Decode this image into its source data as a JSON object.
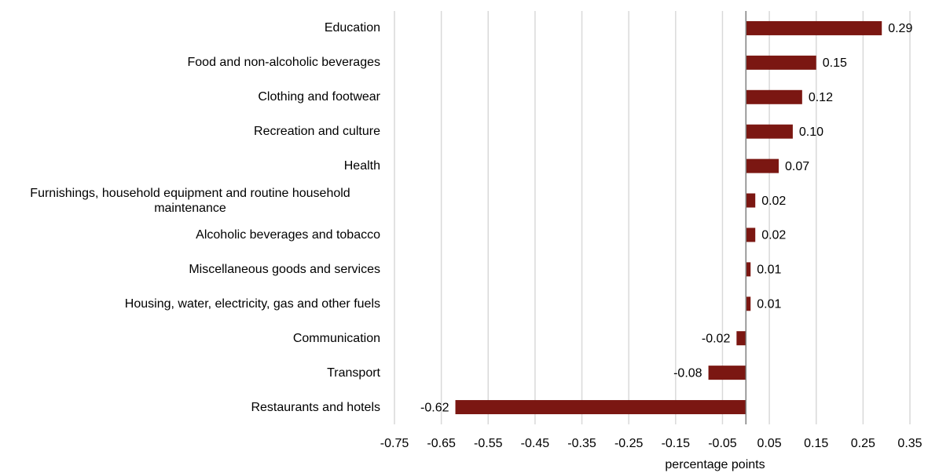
{
  "chart_data": {
    "type": "bar",
    "orientation": "horizontal",
    "categories": [
      "Education",
      "Food and non-alcoholic beverages",
      "Clothing and footwear",
      "Recreation and culture",
      "Health",
      "Furnishings, household equipment and routine household maintenance",
      "Alcoholic beverages and tobacco",
      "Miscellaneous goods and services",
      "Housing, water, electricity, gas and other fuels",
      "Communication",
      "Transport",
      "Restaurants and hotels"
    ],
    "values": [
      0.29,
      0.15,
      0.12,
      0.1,
      0.07,
      0.02,
      0.02,
      0.01,
      0.01,
      -0.02,
      -0.08,
      -0.62
    ],
    "value_labels": [
      "0.29",
      "0.15",
      "0.12",
      "0.10",
      "0.07",
      "0.02",
      "0.02",
      "0.01",
      "0.01",
      "-0.02",
      "-0.08",
      "-0.62"
    ],
    "color": "#7b1712",
    "xlabel": "percentage points",
    "xlim": [
      -0.75,
      0.35
    ],
    "xticks": [
      -0.75,
      -0.65,
      -0.55,
      -0.45,
      -0.35,
      -0.25,
      -0.15,
      -0.05,
      0.05,
      0.15,
      0.25,
      0.35
    ],
    "grid": true
  }
}
